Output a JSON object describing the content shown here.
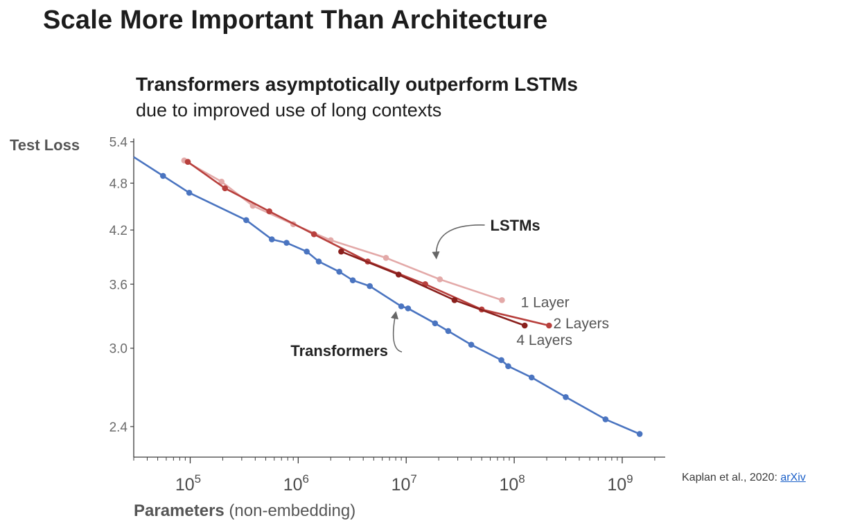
{
  "slide": {
    "title": "Scale More Important Than Architecture"
  },
  "citation": {
    "text": "Kaplan et al., 2020: ",
    "link": "arXiv"
  },
  "chart_data": {
    "type": "line",
    "title": "Transformers asymptotically outperform LSTMs",
    "subtitle": "due to improved use of long contexts",
    "ylabel": "Test Loss",
    "xlabel": "Parameters",
    "xlabel_suffix": " (non-embedding)",
    "xscale": "log",
    "yscale": "log",
    "xlim": [
      30000,
      2500000000
    ],
    "ylim": [
      2.2,
      5.45
    ],
    "grid": false,
    "yticks": [
      {
        "value": 5.4,
        "label": "5.4"
      },
      {
        "value": 4.8,
        "label": "4.8"
      },
      {
        "value": 4.2,
        "label": "4.2"
      },
      {
        "value": 3.6,
        "label": "3.6"
      },
      {
        "value": 3.0,
        "label": "3.0"
      },
      {
        "value": 2.4,
        "label": "2.4"
      }
    ],
    "xticks": [
      {
        "value": 100000,
        "base": "10",
        "exp": "5"
      },
      {
        "value": 1000000,
        "base": "10",
        "exp": "6"
      },
      {
        "value": 10000000,
        "base": "10",
        "exp": "7"
      },
      {
        "value": 100000000,
        "base": "10",
        "exp": "8"
      },
      {
        "value": 1000000000,
        "base": "10",
        "exp": "9"
      }
    ],
    "annotations": [
      {
        "text": "LSTMs",
        "x": 60000000,
        "y": 4.26,
        "arrow_to": [
          19000000,
          3.88
        ]
      },
      {
        "text": "Transformers",
        "x": 850000,
        "y": 2.98,
        "arrow_to": [
          8000000,
          3.32
        ]
      }
    ],
    "series": [
      {
        "name": "Transformers",
        "color": "#4a74c0",
        "line_start": [
          30000,
          5.17
        ],
        "points": [
          [
            56000,
            4.9
          ],
          [
            98000,
            4.67
          ],
          [
            330000,
            4.32
          ],
          [
            570000,
            4.09
          ],
          [
            780000,
            4.05
          ],
          [
            1200000,
            3.95
          ],
          [
            1550000,
            3.84
          ],
          [
            2400000,
            3.73
          ],
          [
            3200000,
            3.64
          ],
          [
            4600000,
            3.58
          ],
          [
            9000000,
            3.38
          ],
          [
            10400000,
            3.36
          ],
          [
            18500000,
            3.22
          ],
          [
            24500000,
            3.15
          ],
          [
            40000000,
            3.03
          ],
          [
            76000000,
            2.9
          ],
          [
            88000000,
            2.85
          ],
          [
            145000000,
            2.76
          ],
          [
            300000000,
            2.61
          ],
          [
            700000000,
            2.45
          ],
          [
            1450000000,
            2.35
          ]
        ]
      },
      {
        "name": "1 Layer",
        "color": "#e3a9a8",
        "points": [
          [
            88000,
            5.12
          ],
          [
            195000,
            4.82
          ],
          [
            380000,
            4.5
          ],
          [
            900000,
            4.27
          ],
          [
            2000000,
            4.08
          ],
          [
            6500000,
            3.88
          ],
          [
            20500000,
            3.65
          ],
          [
            77000000,
            3.44
          ]
        ]
      },
      {
        "name": "2 Layers",
        "color": "#b8403d",
        "points": [
          [
            95000,
            5.1
          ],
          [
            210000,
            4.73
          ],
          [
            540000,
            4.43
          ],
          [
            1400000,
            4.15
          ],
          [
            4400000,
            3.84
          ],
          [
            15000000,
            3.6
          ],
          [
            50000000,
            3.35
          ],
          [
            210000000,
            3.2
          ]
        ]
      },
      {
        "name": "4 Layers",
        "color": "#8a1f1c",
        "points": [
          [
            2500000,
            3.95
          ],
          [
            8500000,
            3.7
          ],
          [
            28000000,
            3.44
          ],
          [
            125000000,
            3.2
          ]
        ]
      }
    ],
    "series_labels": [
      {
        "series": "1 Layer",
        "text": "1 Layer",
        "x": 115000000,
        "y": 3.42
      },
      {
        "series": "2 Layers",
        "text": "2 Layers",
        "x": 230000000,
        "y": 3.22
      },
      {
        "series": "4 Layers",
        "text": "4 Layers",
        "x": 105000000,
        "y": 3.07
      }
    ]
  }
}
